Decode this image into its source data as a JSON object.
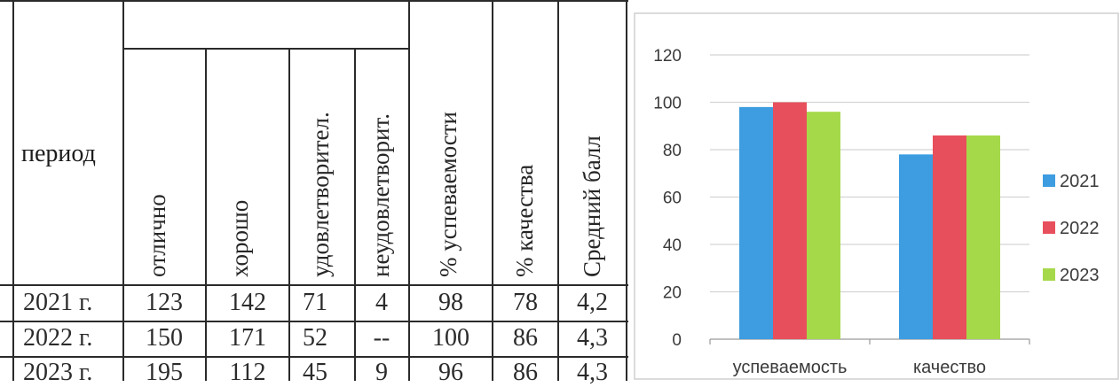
{
  "table": {
    "header_period": "период",
    "columns": [
      "отлично",
      "хорошо",
      "удовлетворител.",
      "неудовлетворит.",
      "% успеваемости",
      "% качества",
      "Средний балл"
    ],
    "rows": [
      {
        "period": "2021 г.",
        "values": [
          "123",
          "142",
          "71",
          "4",
          "98",
          "78",
          "4,2"
        ]
      },
      {
        "period": "2022 г.",
        "values": [
          "150",
          "171",
          "52",
          "--",
          "100",
          "86",
          "4,3"
        ]
      },
      {
        "period": "2023 г.",
        "values": [
          "195",
          "112",
          "45",
          "9",
          "96",
          "86",
          "4,3"
        ]
      }
    ]
  },
  "chart_data": {
    "type": "bar",
    "categories": [
      "успеваемость",
      "качество"
    ],
    "series": [
      {
        "name": "2021",
        "values": [
          98,
          78
        ],
        "color": "#3d9de0"
      },
      {
        "name": "2022",
        "values": [
          100,
          86
        ],
        "color": "#e84f5c"
      },
      {
        "name": "2023",
        "values": [
          96,
          86
        ],
        "color": "#a6d94a"
      }
    ],
    "ylim": [
      0,
      120
    ],
    "yticks": [
      "0",
      "20",
      "40",
      "60",
      "80",
      "100",
      "120"
    ],
    "grid": true,
    "legend": "right",
    "title": "",
    "xlabel": "",
    "ylabel": ""
  }
}
